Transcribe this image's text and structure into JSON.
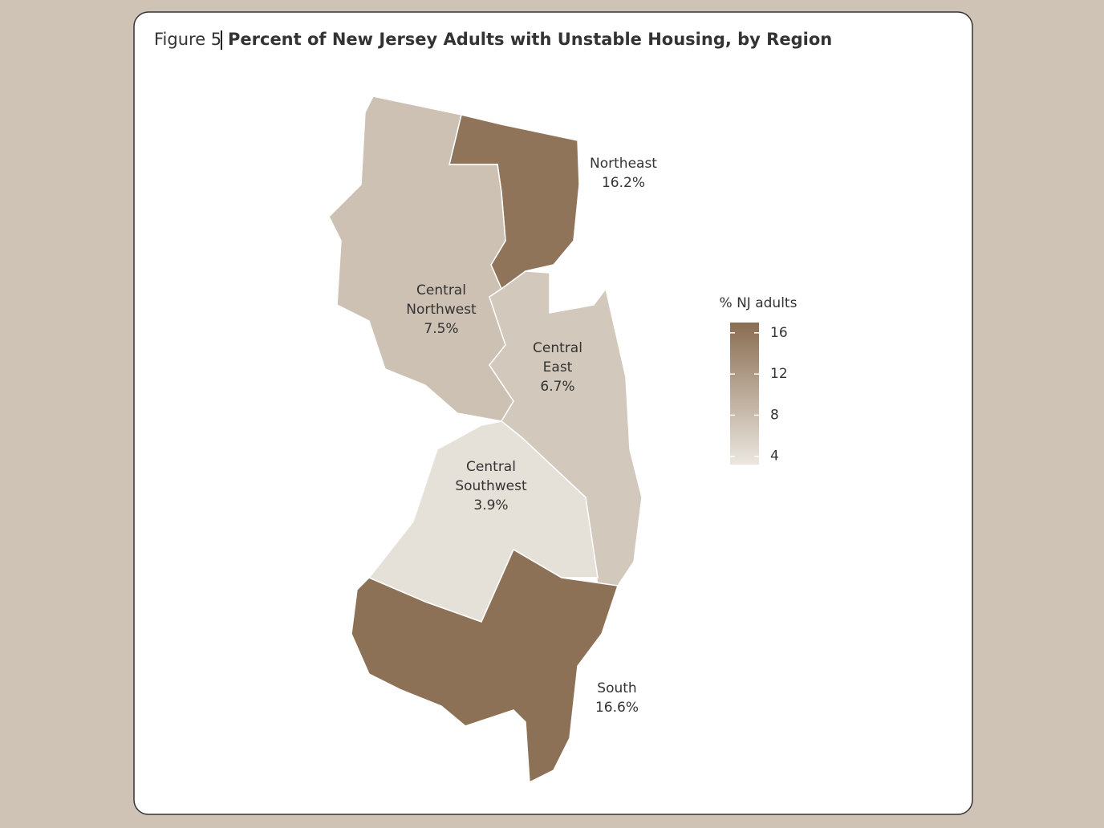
{
  "chart_data": {
    "type": "choropleth",
    "figure_label": "Figure 5",
    "title": "Percent of New Jersey Adults with Unstable Housing, by Region",
    "regions": [
      {
        "name": [
          "Northeast"
        ],
        "value": 16.2,
        "value_label": "16.2%"
      },
      {
        "name": [
          "Central",
          "Northwest"
        ],
        "value": 7.5,
        "value_label": "7.5%"
      },
      {
        "name": [
          "Central",
          "East"
        ],
        "value": 6.7,
        "value_label": "6.7%"
      },
      {
        "name": [
          "Central",
          "Southwest"
        ],
        "value": 3.9,
        "value_label": "3.9%"
      },
      {
        "name": [
          "South"
        ],
        "value": 16.6,
        "value_label": "16.6%"
      }
    ],
    "legend_title": "% NJ adults",
    "colors": [
      "#ebe7df",
      "#8a6d52"
    ],
    "colorbar_lim": [
      3.2,
      17
    ],
    "colorbar_ticks": [
      4,
      8,
      12,
      16
    ]
  }
}
